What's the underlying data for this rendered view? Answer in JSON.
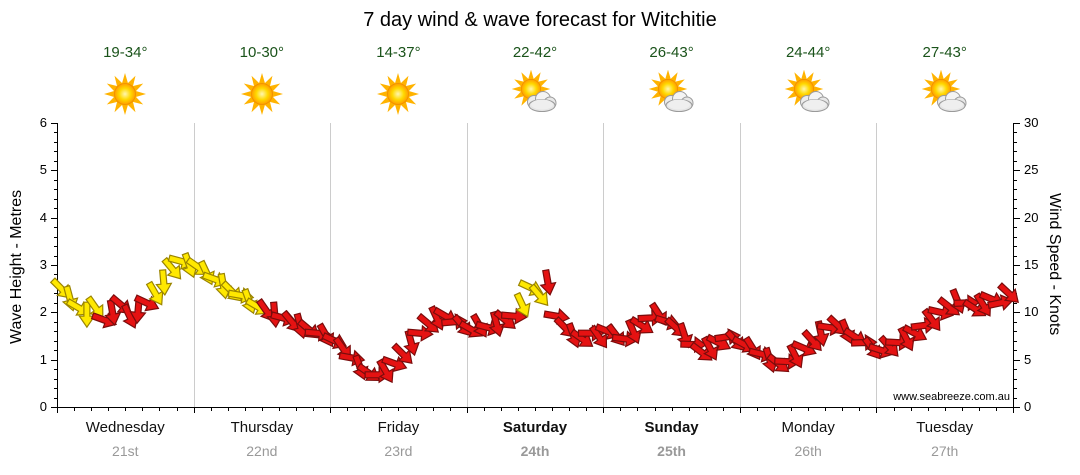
{
  "title": "7 day wind & wave forecast for Witchitie",
  "watermark": "www.seabreeze.com.au",
  "axes": {
    "left": {
      "label": "Wave Height - Metres",
      "ticks": [
        0,
        1,
        2,
        3,
        4,
        5,
        6
      ],
      "max": 6
    },
    "right": {
      "label": "Wind Speed - Knots",
      "ticks": [
        0,
        5,
        10,
        15,
        20,
        25,
        30
      ],
      "max": 30
    }
  },
  "days": [
    {
      "name": "Wednesday",
      "date": "21st",
      "temp": "19-34°",
      "icon": "sunny",
      "weekend": false
    },
    {
      "name": "Thursday",
      "date": "22nd",
      "temp": "10-30°",
      "icon": "sunny",
      "weekend": false
    },
    {
      "name": "Friday",
      "date": "23rd",
      "temp": "14-37°",
      "icon": "sunny",
      "weekend": false
    },
    {
      "name": "Saturday",
      "date": "24th",
      "temp": "22-42°",
      "icon": "partly",
      "weekend": true
    },
    {
      "name": "Sunday",
      "date": "25th",
      "temp": "26-43°",
      "icon": "partly",
      "weekend": true
    },
    {
      "name": "Monday",
      "date": "26th",
      "temp": "24-44°",
      "icon": "partly",
      "weekend": false
    },
    {
      "name": "Tuesday",
      "date": "27th",
      "temp": "27-43°",
      "icon": "partly",
      "weekend": false
    }
  ],
  "chart_data": {
    "type": "scatter",
    "marker": "directional-wind-arrow",
    "title": "7 day wind & wave forecast for Witchitie",
    "x_categories": [
      "Wednesday 21st",
      "Thursday 22nd",
      "Friday 23rd",
      "Saturday 24th",
      "Sunday 25th",
      "Monday 26th",
      "Tuesday 27th"
    ],
    "ylabel_left": "Wave Height - Metres",
    "ylabel_right": "Wind Speed - Knots",
    "ylim_metres": [
      0,
      6
    ],
    "ylim_knots": [
      0,
      30
    ],
    "grid": "vertical-day-boundaries",
    "points_per_day": 16,
    "knots_by_day": [
      [
        12.5,
        11.5,
        10.5,
        9.8,
        10.5,
        9.2,
        10.0,
        10.8,
        9.6,
        10.2,
        11.0,
        12.0,
        13.2,
        14.6,
        15.4,
        15.0
      ],
      [
        14.8,
        14.2,
        13.5,
        12.8,
        12.2,
        11.8,
        11.2,
        10.6,
        10.2,
        9.8,
        9.4,
        9.0,
        8.6,
        8.2,
        7.8,
        7.6
      ],
      [
        7.0,
        6.2,
        5.2,
        4.2,
        3.6,
        3.4,
        3.8,
        4.6,
        5.6,
        6.8,
        7.8,
        8.8,
        9.4,
        9.6,
        9.0,
        8.6
      ],
      [
        8.2,
        8.6,
        8.4,
        8.8,
        9.2,
        9.6,
        10.8,
        12.6,
        11.8,
        13.2,
        9.6,
        8.4,
        7.6,
        7.2,
        7.8,
        7.4
      ],
      [
        8.0,
        7.6,
        7.2,
        8.0,
        8.6,
        9.4,
        9.8,
        9.0,
        8.4,
        7.6,
        6.6,
        5.8,
        6.2,
        6.8,
        7.4,
        7.0
      ],
      [
        6.6,
        6.2,
        5.6,
        5.0,
        4.6,
        4.8,
        5.4,
        6.2,
        7.0,
        7.8,
        8.4,
        8.6,
        8.0,
        7.4,
        6.8,
        6.2
      ],
      [
        6.0,
        6.4,
        6.8,
        7.2,
        7.8,
        8.6,
        9.2,
        10.0,
        10.6,
        11.2,
        11.0,
        10.4,
        10.8,
        11.4,
        11.0,
        12.0
      ]
    ],
    "colors_by_day": [
      "YYYYYRRRRRRYYYYY",
      "YYYYYYYYRRRRRRRR",
      "RRRRRRRRRRRRRRRR",
      "RRRRRRYYYRRRRRRR",
      "RRRRRRRRRRRRRRRR",
      "RRRRRRRRRRRRRRRR",
      "RRRRRRRRRRRRRRRR"
    ],
    "base_dir_by_day": [
      35,
      25,
      15,
      20,
      12,
      18,
      8
    ],
    "dir_jitter": [
      10,
      40,
      -5,
      55,
      20,
      -15,
      45,
      5,
      30,
      60,
      -10,
      25,
      50,
      15,
      -20,
      35
    ]
  },
  "colors": {
    "red": "#e51212",
    "red_outline": "#7a0c0c",
    "yellow": "#ffe800",
    "yellow_outline": "#9a8400",
    "grid": "#cccccc",
    "axis": "#000000",
    "day_name": "#111111",
    "date": "#999999",
    "temp": "#1a531a",
    "watermark": "#b5b5b5"
  }
}
